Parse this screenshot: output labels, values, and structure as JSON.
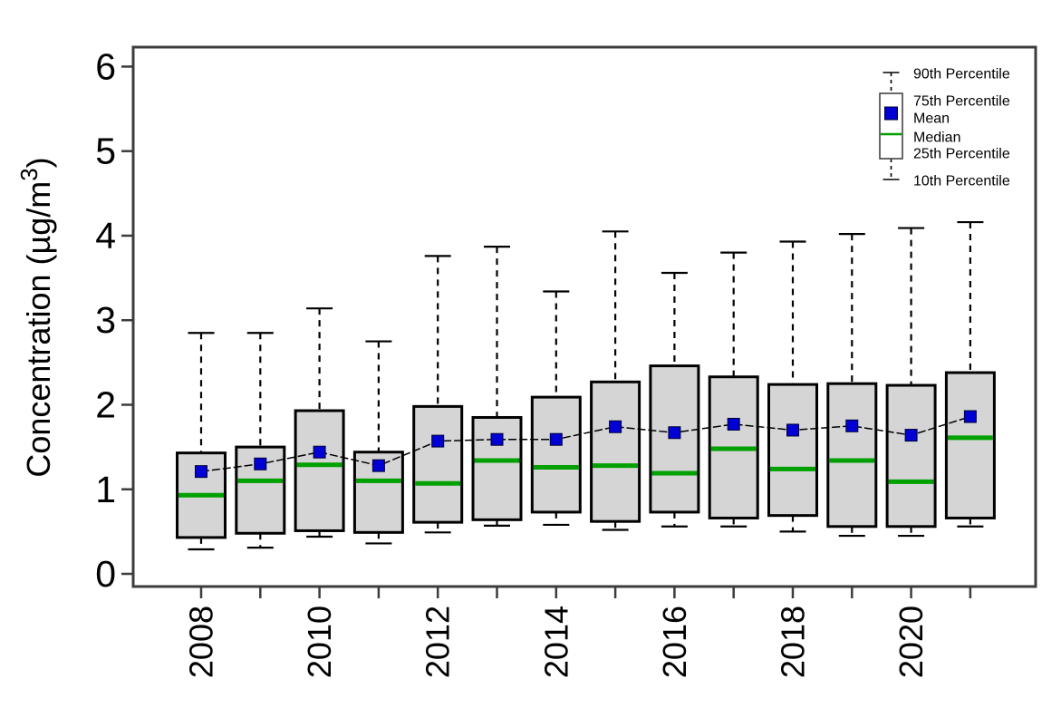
{
  "chart_data": {
    "type": "boxplot",
    "title": "",
    "xlabel": "",
    "ylabel": "Concentration (µg/m³)",
    "ylabel_parts": {
      "main": "Concentration (µg/m",
      "sup": "3",
      "end": ")"
    },
    "y_ticks": [
      0,
      1,
      2,
      3,
      4,
      5,
      6
    ],
    "ylim": [
      -0.15,
      6.23
    ],
    "x_tick_every_year": true,
    "x_labels_shown_every": 2,
    "grid": "off",
    "legend_position": "top-right-inside",
    "legend": [
      {
        "label": "90th Percentile"
      },
      {
        "label": "75th Percentile"
      },
      {
        "label": "Mean"
      },
      {
        "label": "Median"
      },
      {
        "label": "25th Percentile"
      },
      {
        "label": "10th Percentile"
      }
    ],
    "series": [
      {
        "year": 2008,
        "p10": 0.29,
        "p25": 0.43,
        "median": 0.93,
        "mean": 1.21,
        "p75": 1.43,
        "p90": 2.85
      },
      {
        "year": 2009,
        "p10": 0.31,
        "p25": 0.48,
        "median": 1.1,
        "mean": 1.3,
        "p75": 1.5,
        "p90": 2.85
      },
      {
        "year": 2010,
        "p10": 0.44,
        "p25": 0.51,
        "median": 1.29,
        "mean": 1.44,
        "p75": 1.93,
        "p90": 3.14
      },
      {
        "year": 2011,
        "p10": 0.36,
        "p25": 0.49,
        "median": 1.1,
        "mean": 1.28,
        "p75": 1.44,
        "p90": 2.75
      },
      {
        "year": 2012,
        "p10": 0.49,
        "p25": 0.61,
        "median": 1.07,
        "mean": 1.57,
        "p75": 1.98,
        "p90": 3.76
      },
      {
        "year": 2013,
        "p10": 0.57,
        "p25": 0.64,
        "median": 1.34,
        "mean": 1.59,
        "p75": 1.85,
        "p90": 3.87
      },
      {
        "year": 2014,
        "p10": 0.58,
        "p25": 0.73,
        "median": 1.26,
        "mean": 1.59,
        "p75": 2.09,
        "p90": 3.34
      },
      {
        "year": 2015,
        "p10": 0.52,
        "p25": 0.62,
        "median": 1.28,
        "mean": 1.74,
        "p75": 2.27,
        "p90": 4.05
      },
      {
        "year": 2016,
        "p10": 0.56,
        "p25": 0.73,
        "median": 1.19,
        "mean": 1.67,
        "p75": 2.46,
        "p90": 3.56
      },
      {
        "year": 2017,
        "p10": 0.56,
        "p25": 0.66,
        "median": 1.48,
        "mean": 1.77,
        "p75": 2.33,
        "p90": 3.8
      },
      {
        "year": 2018,
        "p10": 0.5,
        "p25": 0.69,
        "median": 1.24,
        "mean": 1.7,
        "p75": 2.24,
        "p90": 3.93
      },
      {
        "year": 2019,
        "p10": 0.45,
        "p25": 0.56,
        "median": 1.34,
        "mean": 1.75,
        "p75": 2.25,
        "p90": 4.02
      },
      {
        "year": 2020,
        "p10": 0.45,
        "p25": 0.56,
        "median": 1.09,
        "mean": 1.64,
        "p75": 2.23,
        "p90": 4.09
      },
      {
        "year": 2021,
        "p10": 0.56,
        "p25": 0.66,
        "median": 1.61,
        "mean": 1.86,
        "p75": 2.38,
        "p90": 4.16
      }
    ],
    "colors": {
      "box_fill": "#d5d5d5",
      "box_border": "#000000",
      "median": "#00a000",
      "mean": "#0000d5",
      "whisker": "#000000",
      "mean_line": "#000000",
      "frame": "#3c3c3c",
      "text": "#000000",
      "background": "#ffffff"
    }
  }
}
